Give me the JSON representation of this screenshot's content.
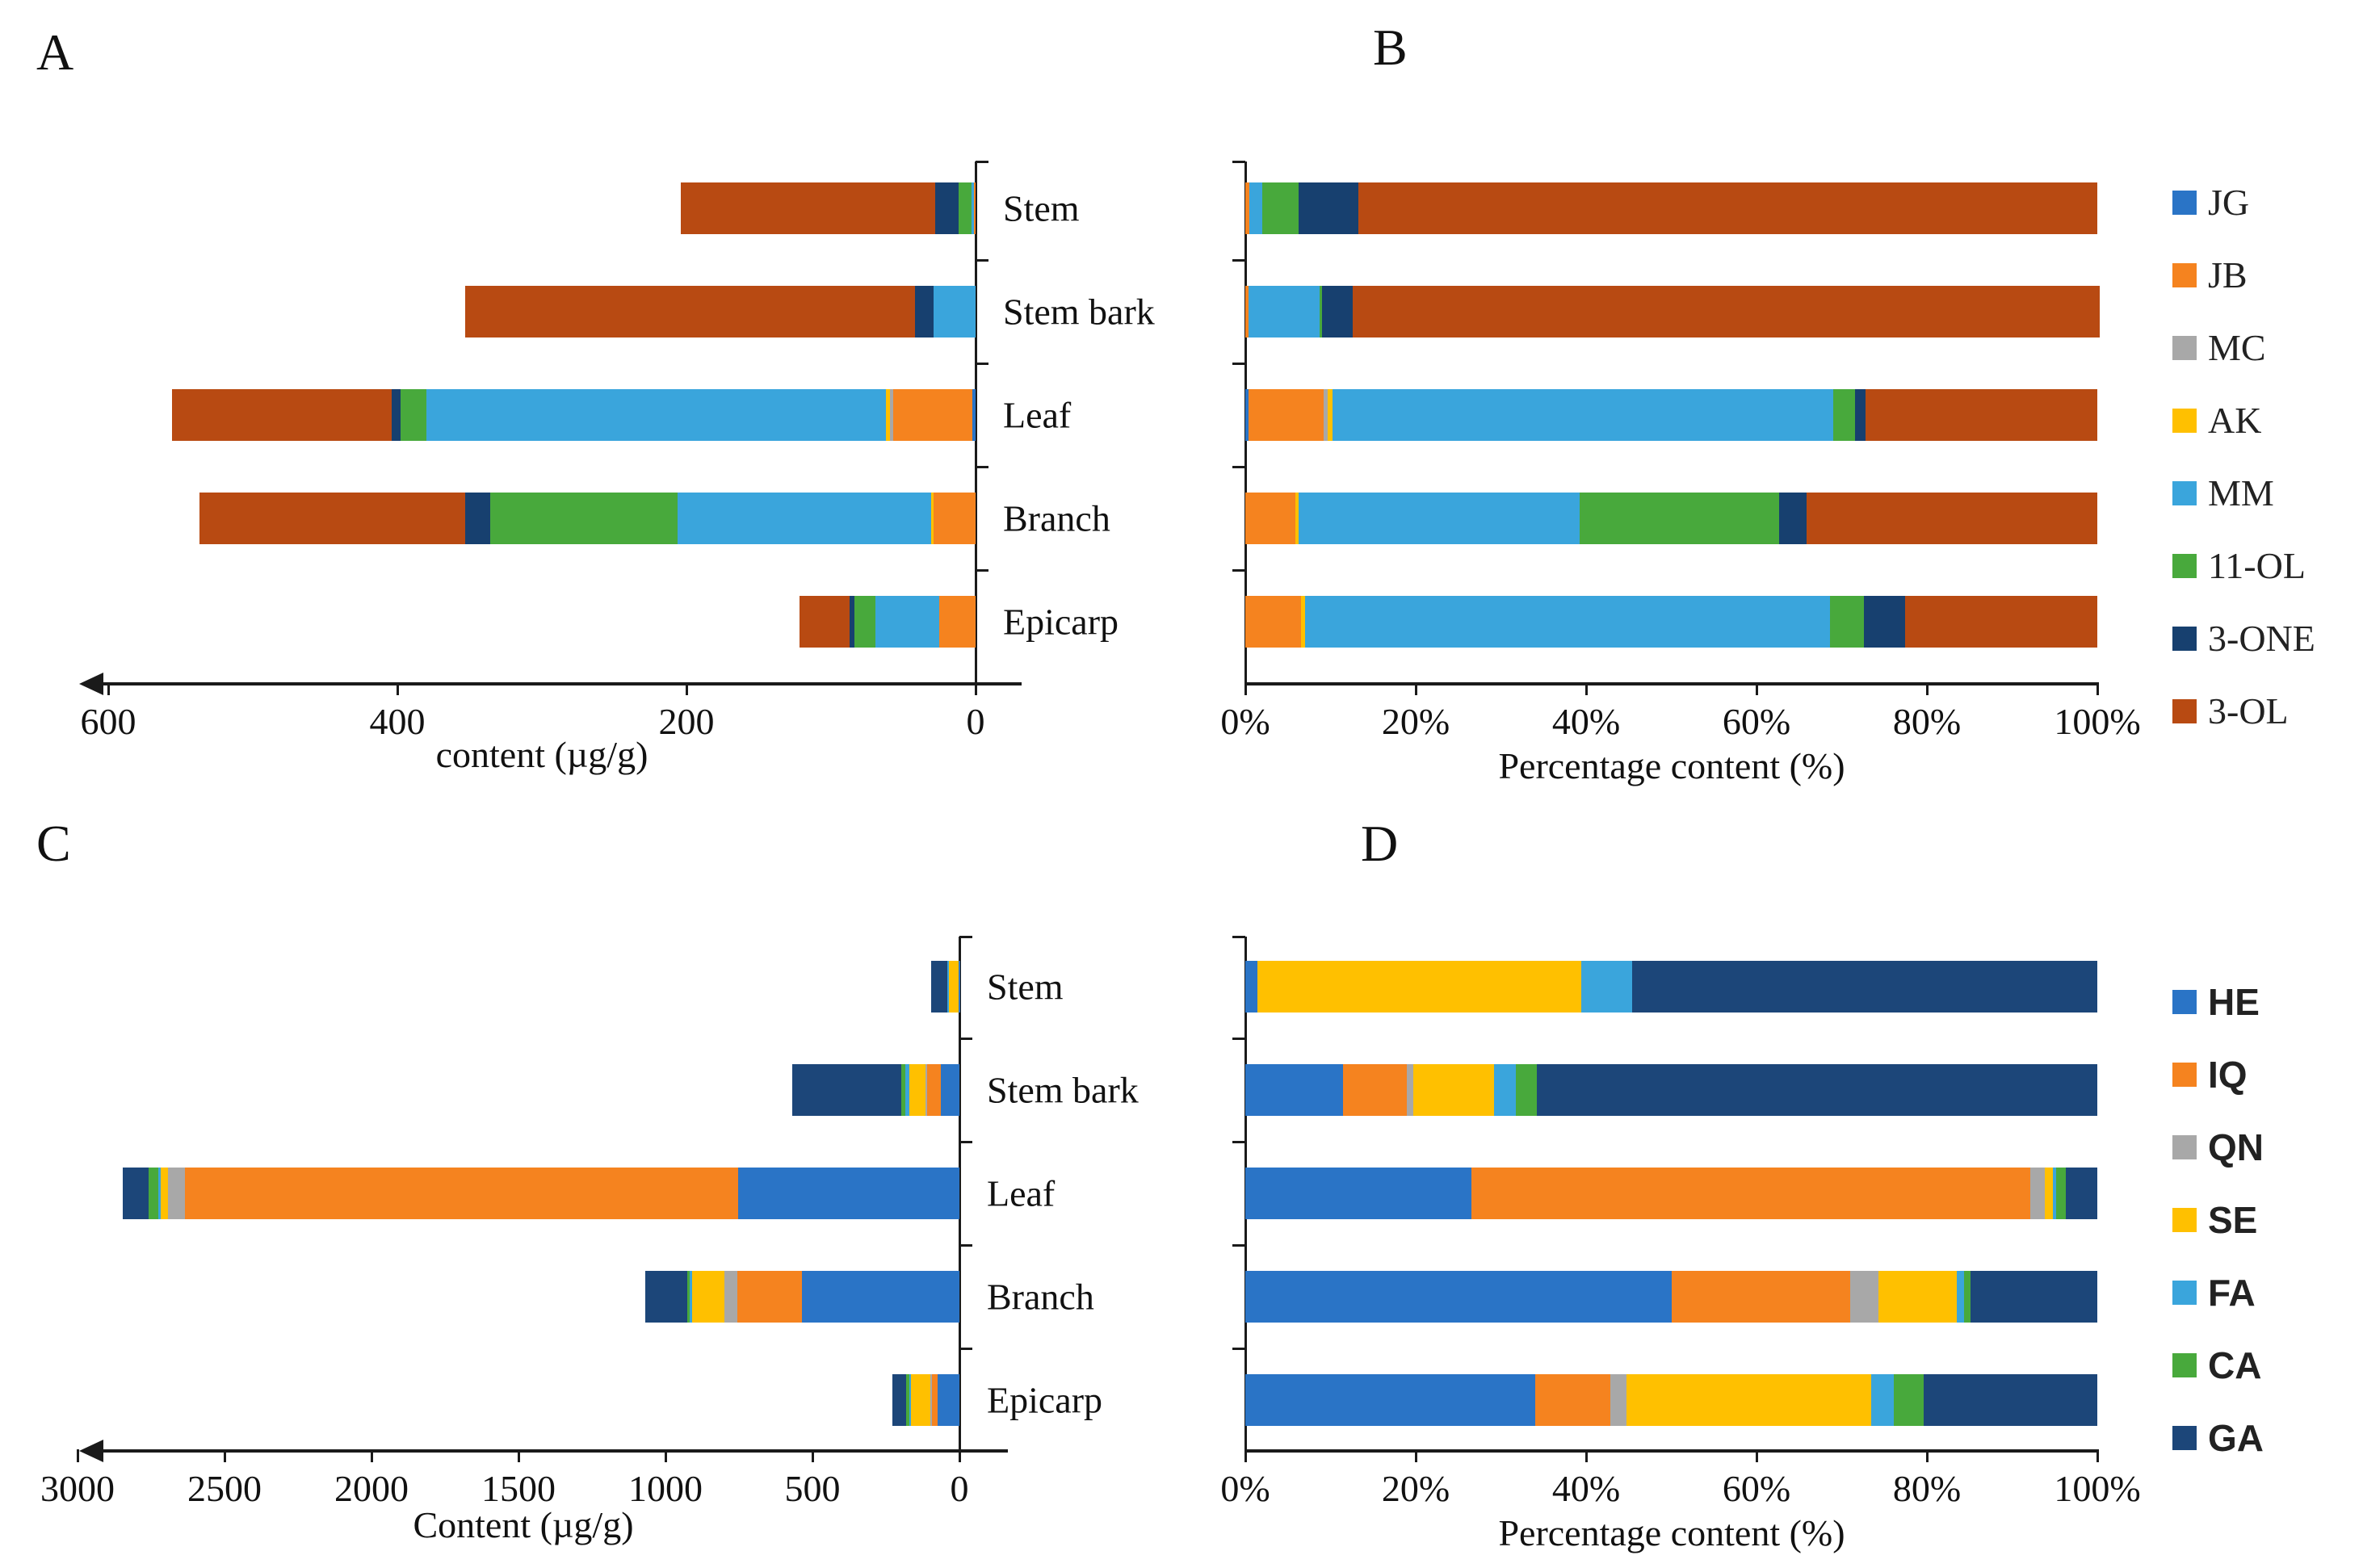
{
  "figure": {
    "panel_letters": {
      "A": "A",
      "B": "B",
      "C": "C",
      "D": "D"
    },
    "axis_titles": {
      "A": "content (µg/g)",
      "B": "Percentage content (%)",
      "C": "Content (µg/g)",
      "D": "Percentage content (%)"
    },
    "categories": [
      "Stem",
      "Stem bark",
      "Leaf",
      "Branch",
      "Epicarp"
    ]
  },
  "colors": {
    "blue": "#2A74C6",
    "orange": "#F5831F",
    "gray": "#A8A8A8",
    "yellow": "#FFC000",
    "light_blue": "#3AA5DC",
    "green": "#48A93C",
    "navy": "#17406F",
    "navy2": "#1C4679",
    "dark_red": "#B84A12"
  },
  "chart_data": [
    {
      "id": "A",
      "type": "bar",
      "orientation": "horizontal-stacked",
      "title": "A",
      "xlabel": "content (µg/g)",
      "note": "value axis reversed: 0 at right, 600 at left, arrow points left",
      "categories": [
        "Stem",
        "Stem bark",
        "Leaf",
        "Branch",
        "Epicarp"
      ],
      "axis_range": [
        0,
        600
      ],
      "x_ticks": [
        600,
        400,
        200,
        0
      ],
      "series": [
        {
          "name": "JG",
          "color": "#2A74C6",
          "values": [
            0,
            0,
            2,
            0,
            0
          ]
        },
        {
          "name": "JB",
          "color": "#F5831F",
          "values": [
            1,
            0,
            55,
            29,
            25
          ]
        },
        {
          "name": "MC",
          "color": "#A8A8A8",
          "values": [
            0,
            0,
            2,
            0,
            0
          ]
        },
        {
          "name": "AK",
          "color": "#FFC000",
          "values": [
            0,
            0,
            3,
            2,
            0
          ]
        },
        {
          "name": "MM",
          "color": "#3AA5DC",
          "values": [
            2,
            29,
            318,
            175,
            44
          ]
        },
        {
          "name": "11-OL",
          "color": "#48A93C",
          "values": [
            9,
            0,
            18,
            130,
            15
          ]
        },
        {
          "name": "3-ONE",
          "color": "#17406F",
          "values": [
            16,
            13,
            6,
            17,
            3
          ]
        },
        {
          "name": "3-OL",
          "color": "#B84A12",
          "values": [
            176,
            311,
            152,
            184,
            35
          ]
        }
      ]
    },
    {
      "id": "B",
      "type": "bar",
      "orientation": "horizontal-stacked-100pct",
      "title": "B",
      "xlabel": "Percentage content (%)",
      "categories": [
        "Stem",
        "Stem bark",
        "Leaf",
        "Branch",
        "Epicarp"
      ],
      "axis_range": [
        0,
        100
      ],
      "x_ticks": [
        "0%",
        "20%",
        "40%",
        "60%",
        "80%",
        "100%"
      ],
      "legend_position": "right",
      "series": [
        {
          "name": "JG",
          "color": "#2A74C6",
          "values": [
            0,
            0,
            0.4,
            0,
            0
          ]
        },
        {
          "name": "JB",
          "color": "#F5831F",
          "values": [
            0.5,
            0.4,
            8.8,
            5.9,
            6.5
          ]
        },
        {
          "name": "MC",
          "color": "#A8A8A8",
          "values": [
            0,
            0,
            0.5,
            0,
            0
          ]
        },
        {
          "name": "AK",
          "color": "#FFC000",
          "values": [
            0,
            0,
            0.5,
            0.4,
            0.5
          ]
        },
        {
          "name": "MM",
          "color": "#3AA5DC",
          "values": [
            1.5,
            8.3,
            58.8,
            32.9,
            61.6
          ]
        },
        {
          "name": "11-OL",
          "color": "#48A93C",
          "values": [
            4.3,
            0.3,
            2.6,
            23.5,
            4.0
          ]
        },
        {
          "name": "3-ONE",
          "color": "#17406F",
          "values": [
            7.0,
            3.6,
            1.2,
            3.2,
            4.8
          ]
        },
        {
          "name": "3-OL",
          "color": "#B84A12",
          "values": [
            86.7,
            87.7,
            27.2,
            34.1,
            22.6
          ]
        }
      ]
    },
    {
      "id": "C",
      "type": "bar",
      "orientation": "horizontal-stacked",
      "title": "C",
      "xlabel": "Content (µg/g)",
      "note": "value axis reversed: 0 at right, 3000 at left, arrow points left",
      "categories": [
        "Stem",
        "Stem bark",
        "Leaf",
        "Branch",
        "Epicarp"
      ],
      "axis_range": [
        0,
        3000
      ],
      "x_ticks": [
        3000,
        2500,
        2000,
        1500,
        1000,
        500,
        0
      ],
      "series": [
        {
          "name": "HE",
          "color": "#2A74C6",
          "values": [
            1.5,
            62,
            754,
            535,
            75
          ]
        },
        {
          "name": "IQ",
          "color": "#F5831F",
          "values": [
            0,
            48,
            1880,
            220,
            19
          ]
        },
        {
          "name": "QN",
          "color": "#A8A8A8",
          "values": [
            0,
            6,
            57,
            45,
            4
          ]
        },
        {
          "name": "SE",
          "color": "#FFC000",
          "values": [
            35,
            55,
            25,
            110,
            66
          ]
        },
        {
          "name": "FA",
          "color": "#3AA5DC",
          "values": [
            4,
            12,
            8,
            8,
            5
          ]
        },
        {
          "name": "CA",
          "color": "#48A93C",
          "values": [
            0,
            16,
            33,
            9,
            13
          ]
        },
        {
          "name": "GA",
          "color": "#1C4679",
          "values": [
            56,
            371,
            90,
            143,
            46
          ]
        }
      ]
    },
    {
      "id": "D",
      "type": "bar",
      "orientation": "horizontal-stacked-100pct",
      "title": "D",
      "xlabel": "Percentage content (%)",
      "categories": [
        "Stem",
        "Stem bark",
        "Leaf",
        "Branch",
        "Epicarp"
      ],
      "axis_range": [
        0,
        100
      ],
      "x_ticks": [
        "0%",
        "20%",
        "40%",
        "60%",
        "80%",
        "100%"
      ],
      "legend_position": "right",
      "series": [
        {
          "name": "HE",
          "color": "#2A74C6",
          "values": [
            1.4,
            11.5,
            26.5,
            50.0,
            34.0
          ]
        },
        {
          "name": "IQ",
          "color": "#F5831F",
          "values": [
            0,
            7.5,
            65.6,
            21.0,
            8.8
          ]
        },
        {
          "name": "QN",
          "color": "#A8A8A8",
          "values": [
            0,
            0.7,
            1.7,
            3.3,
            1.9
          ]
        },
        {
          "name": "SE",
          "color": "#FFC000",
          "values": [
            38.0,
            9.5,
            1.0,
            9.2,
            28.8
          ]
        },
        {
          "name": "FA",
          "color": "#3AA5DC",
          "values": [
            6.0,
            2.6,
            0.4,
            0.9,
            2.6
          ]
        },
        {
          "name": "CA",
          "color": "#48A93C",
          "values": [
            0,
            2.4,
            1.1,
            0.7,
            3.5
          ]
        },
        {
          "name": "GA",
          "color": "#1C4679",
          "values": [
            54.6,
            65.8,
            3.7,
            14.9,
            20.4
          ]
        }
      ]
    }
  ],
  "legend_top": [
    {
      "label": "JG",
      "color": "#2A74C6"
    },
    {
      "label": "JB",
      "color": "#F5831F"
    },
    {
      "label": "MC",
      "color": "#A8A8A8"
    },
    {
      "label": "AK",
      "color": "#FFC000"
    },
    {
      "label": "MM",
      "color": "#3AA5DC"
    },
    {
      "label": "11-OL",
      "color": "#48A93C"
    },
    {
      "label": "3-ONE",
      "color": "#17406F"
    },
    {
      "label": "3-OL",
      "color": "#B84A12"
    }
  ],
  "legend_bottom": [
    {
      "label": "HE",
      "color": "#2A74C6"
    },
    {
      "label": "IQ",
      "color": "#F5831F"
    },
    {
      "label": "QN",
      "color": "#A8A8A8"
    },
    {
      "label": "SE",
      "color": "#FFC000"
    },
    {
      "label": "FA",
      "color": "#3AA5DC"
    },
    {
      "label": "CA",
      "color": "#48A93C"
    },
    {
      "label": "GA",
      "color": "#1C4679"
    }
  ]
}
